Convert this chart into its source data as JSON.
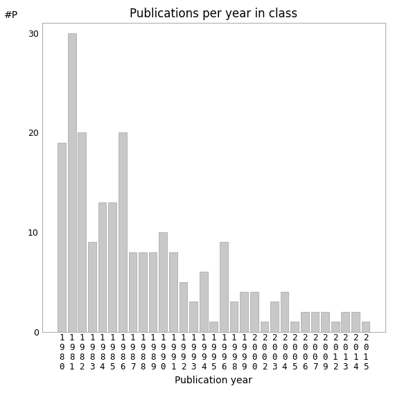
{
  "years": [
    "1980",
    "1981",
    "1982",
    "1983",
    "1984",
    "1985",
    "1986",
    "1987",
    "1988",
    "1989",
    "1990",
    "1991",
    "1992",
    "1993",
    "1994",
    "1995",
    "1996",
    "1998",
    "1999",
    "2000",
    "2002",
    "2003",
    "2004",
    "2005",
    "2006",
    "2007",
    "2009",
    "2012",
    "2013",
    "2014",
    "2015"
  ],
  "values": [
    19,
    30,
    20,
    9,
    13,
    13,
    20,
    8,
    8,
    8,
    10,
    8,
    5,
    3,
    6,
    1,
    9,
    3,
    4,
    4,
    1,
    3,
    4,
    1,
    2,
    2,
    2,
    1,
    2,
    2,
    1
  ],
  "bar_color": "#c8c8c8",
  "bar_edge_color": "#a0a0a0",
  "title": "Publications per year in class",
  "xlabel": "Publication year",
  "ylabel": "#P",
  "ylim": [
    0,
    31
  ],
  "yticks": [
    0,
    10,
    20,
    30
  ],
  "background_color": "#ffffff",
  "title_fontsize": 12,
  "label_fontsize": 10,
  "tick_fontsize": 9
}
